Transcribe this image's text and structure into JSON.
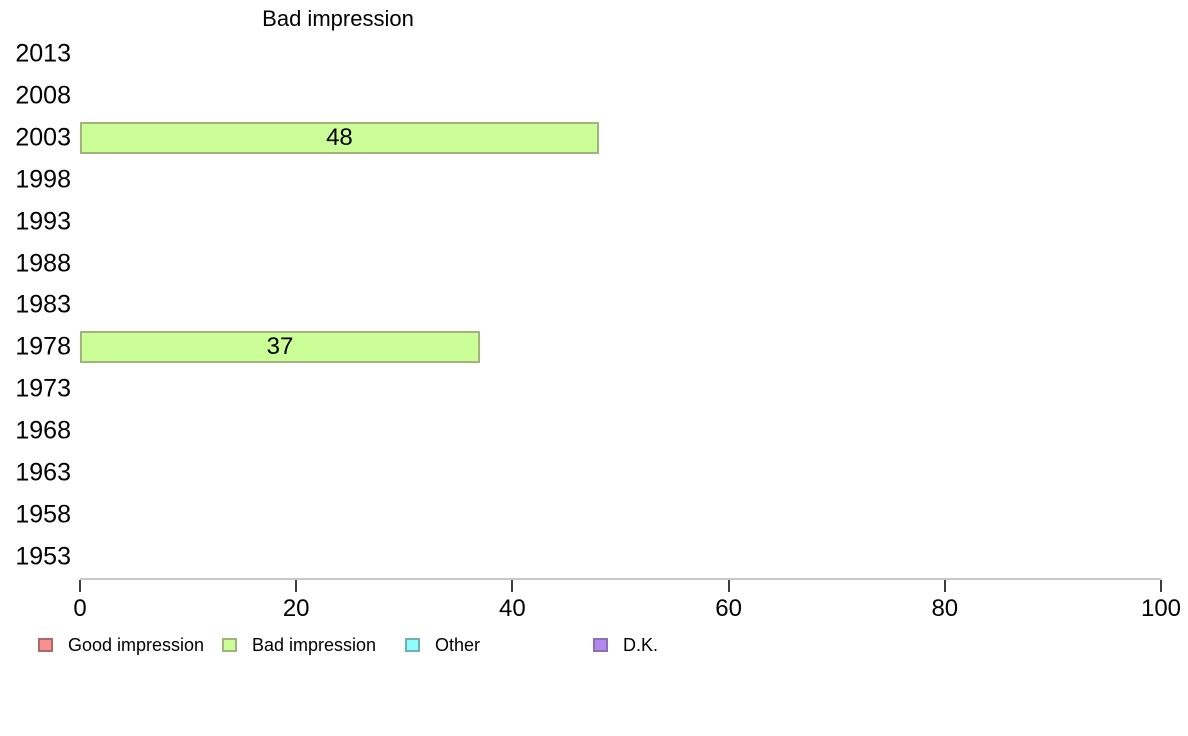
{
  "chart_data": {
    "type": "bar",
    "orientation": "horizontal",
    "title": "Bad impression",
    "xlabel": "",
    "ylabel": "",
    "categories": [
      "2013",
      "2008",
      "2003",
      "1998",
      "1993",
      "1988",
      "1983",
      "1978",
      "1973",
      "1968",
      "1963",
      "1958",
      "1953"
    ],
    "values": [
      null,
      null,
      48,
      null,
      null,
      null,
      null,
      37,
      null,
      null,
      null,
      null,
      null
    ],
    "xlim": [
      0,
      100
    ],
    "xticks": [
      0,
      20,
      40,
      60,
      80,
      100
    ],
    "grid": false,
    "legend_position": "bottom",
    "bar_fill_color": "#ccfe97",
    "bar_border_color": "#a2b37c",
    "axis_line_color": "#c9c9c9",
    "tick_color": "#3d3d3d",
    "legend": [
      {
        "label": "Good impression",
        "color": "#f98f8f",
        "border": "#a96a6a"
      },
      {
        "label": "Bad impression",
        "color": "#ccfe97",
        "border": "#a2b37c"
      },
      {
        "label": "Other",
        "color": "#8ffcfc",
        "border": "#74aeae"
      },
      {
        "label": "D.K.",
        "color": "#b489ee",
        "border": "#8a6fb2"
      }
    ]
  }
}
